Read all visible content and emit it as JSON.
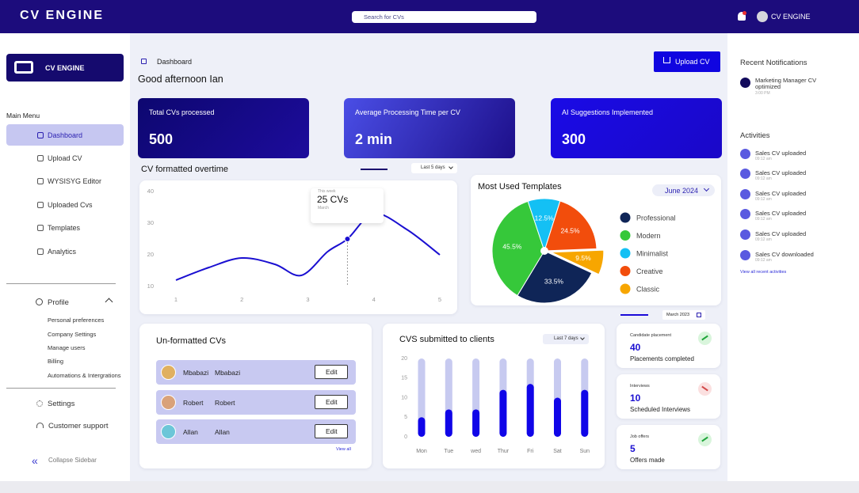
{
  "header": {
    "brand": "CV ENGINE",
    "search": "Search for CVs",
    "user": "CV ENGINE"
  },
  "sidebar": {
    "logo": "CV ENGINE",
    "menu_title": "Main Menu",
    "menu": [
      "Dashboard",
      "Upload CV",
      "WYSISYG Editor",
      "Uploaded Cvs",
      "Templates",
      "Analytics"
    ],
    "profile": "Profile",
    "profile_items": [
      "Personal preferences",
      "Company Settings",
      "Manage users",
      "Billing",
      "Automations & Intergrations"
    ],
    "settings": "Settings",
    "support": "Customer support",
    "collapse": "Collapse Sidebar"
  },
  "main": {
    "breadcrumb": "Dashboard",
    "greeting": "Good afternoon Ian",
    "upload": "Upload CV",
    "stats": [
      {
        "label": "Total CVs processed",
        "value": 500
      },
      {
        "label": "Average Processing Time per CV",
        "value": "2 min"
      },
      {
        "label": "AI Suggestions Implemented",
        "value": 300
      }
    ]
  },
  "chart_data": [
    {
      "type": "line",
      "title": "CV  formatted overtime",
      "filter": "Last 5 days",
      "x": [
        1,
        1.5,
        2,
        2.5,
        2.9,
        3.3,
        3.6,
        4,
        4.5,
        5
      ],
      "values": [
        12,
        16,
        19,
        17,
        13.5,
        21,
        25,
        33,
        28,
        20
      ],
      "color": "#1a0fd1",
      "xlim": [
        1,
        5
      ],
      "xticks": [
        1,
        2,
        3,
        4,
        5
      ],
      "ylim": [
        10,
        40
      ],
      "yticks": [
        10,
        20,
        30,
        40
      ],
      "annotation": {
        "title": "This week",
        "value": "25 CVs",
        "subtitle": "March",
        "point": 6
      }
    },
    {
      "type": "pie",
      "title": "Most Used Templates",
      "filter": "June 2024",
      "categories": [
        "Professional",
        "Modern",
        "Minimalist",
        "Creative",
        "Classic"
      ],
      "values": [
        33.5,
        45.5,
        12.5,
        24.5,
        9.5
      ],
      "value_labels": [
        "33.5%",
        "45.5%",
        "12.5%",
        "24.5%",
        "9.5%"
      ],
      "colors": [
        "#0f2557",
        "#36c83a",
        "#14c0f4",
        "#f24d0c",
        "#f7a600"
      ],
      "exploded": "Classic"
    },
    {
      "type": "bar",
      "title": "CVS submitted to clients",
      "filter": "Last 7 days",
      "categories": [
        "Mon",
        "Tue",
        "wed",
        "Thur",
        "Fri",
        "Sat",
        "Sun"
      ],
      "values": [
        5,
        7,
        7,
        12,
        13.5,
        10,
        12
      ],
      "color": "#1005e8",
      "track_color": "#c7caf0",
      "ylim": [
        0,
        20
      ],
      "yticks": [
        0,
        5,
        10,
        15,
        20
      ]
    }
  ],
  "unformatted": {
    "title": "Un-formatted CVs",
    "rows": [
      {
        "first": "Mbabazi",
        "last": "Mbabazi",
        "action": "Edit"
      },
      {
        "first": "Robert",
        "last": "Robert",
        "action": "Edit"
      },
      {
        "first": "Allan",
        "last": "Allan",
        "action": "Edit"
      }
    ],
    "view_all": "View all"
  },
  "metrics": {
    "date": "March 2023",
    "cards": [
      {
        "label": "Candidate placement",
        "value": 40,
        "caption": "Placements completed",
        "trend": "up"
      },
      {
        "label": "Interviews",
        "value": 10,
        "caption": "Scheduled Interviews",
        "trend": "down"
      },
      {
        "label": "Job offers",
        "value": 5,
        "caption": "Offers made",
        "trend": "up"
      }
    ]
  },
  "notifications": {
    "title": "Recent Notifications",
    "items": [
      {
        "text": "Marketing Manager CV optimized",
        "time": "3:00 PM"
      }
    ]
  },
  "activities": {
    "title": "Activities",
    "items": [
      {
        "text": "Sales  CV uploaded",
        "time": "09:12 am"
      },
      {
        "text": "Sales  CV uploaded",
        "time": "09:12 am"
      },
      {
        "text": "Sales  CV uploaded",
        "time": "09:12 am"
      },
      {
        "text": "Sales  CV uploaded",
        "time": "09:12 am"
      },
      {
        "text": "Sales  CV uploaded",
        "time": "09:12 am"
      },
      {
        "text": "Sales  CV downloaded",
        "time": "09:12 am"
      }
    ],
    "view_all": "View all recent activities"
  }
}
